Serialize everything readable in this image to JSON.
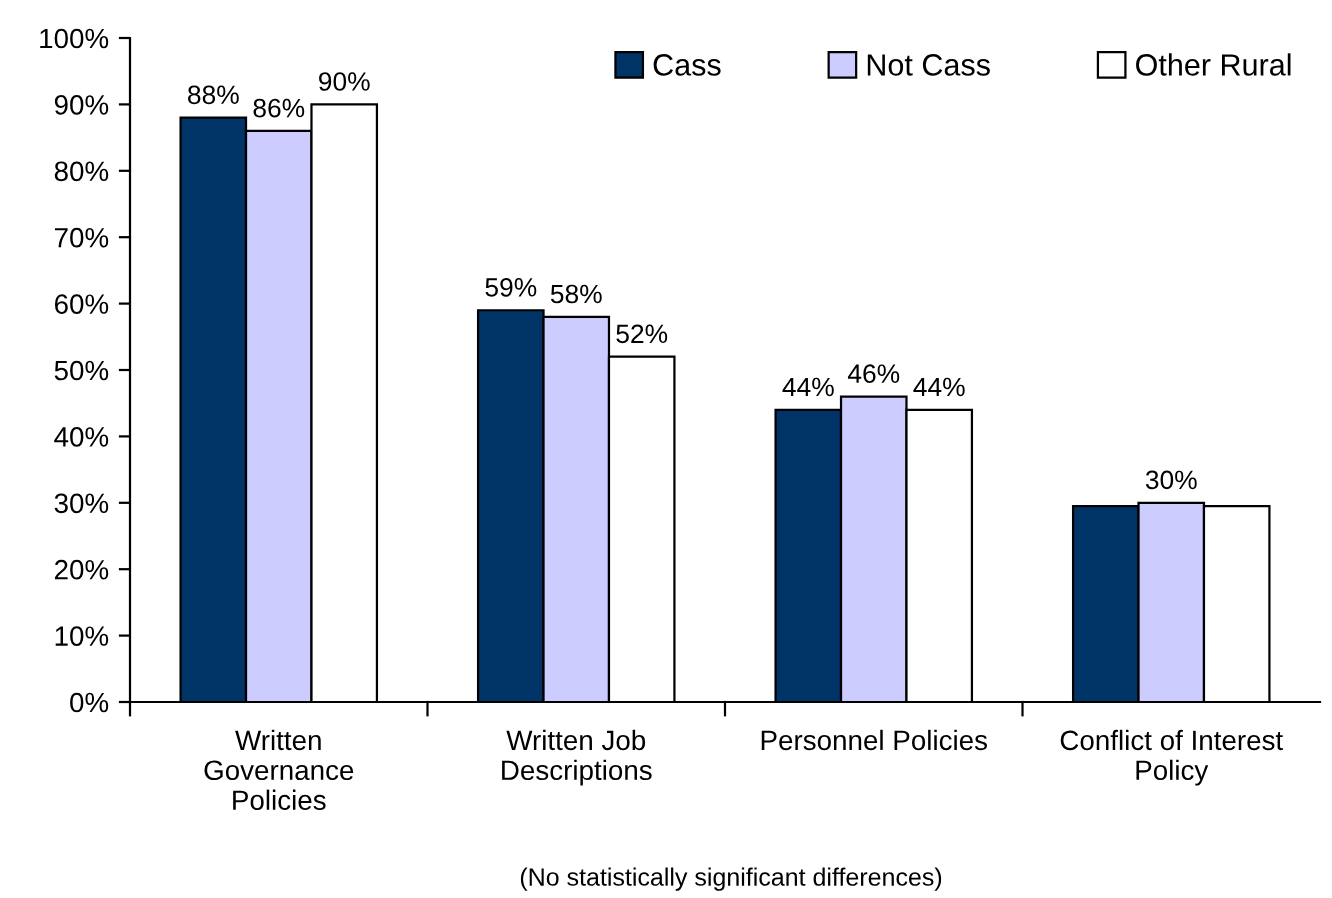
{
  "chart_data": {
    "type": "bar",
    "categories": [
      "Written\nGovernance\nPolicies",
      "Written Job\nDescriptions",
      "Personnel Policies",
      "Conflict of Interest\nPolicy"
    ],
    "series": [
      {
        "name": "Cass",
        "color": "#003366",
        "values": [
          88,
          59,
          44,
          29.5
        ],
        "value_labels": [
          "88%",
          "59%",
          "44%",
          null
        ]
      },
      {
        "name": "Not Cass",
        "color": "#ccccff",
        "values": [
          86,
          58,
          46,
          30
        ],
        "value_labels": [
          "86%",
          "58%",
          "46%",
          "30%"
        ]
      },
      {
        "name": "Other Rural",
        "color": "#ffffff",
        "values": [
          90,
          52,
          44,
          29.5
        ],
        "value_labels": [
          "90%",
          "52%",
          "44%",
          null
        ]
      }
    ],
    "ylim": [
      0,
      100
    ],
    "yticks": [
      {
        "value": 0,
        "label": "0%"
      },
      {
        "value": 10,
        "label": "10%"
      },
      {
        "value": 20,
        "label": "20%"
      },
      {
        "value": 30,
        "label": "30%"
      },
      {
        "value": 40,
        "label": "40%"
      },
      {
        "value": 50,
        "label": "50%"
      },
      {
        "value": 60,
        "label": "60%"
      },
      {
        "value": 70,
        "label": "70%"
      },
      {
        "value": 80,
        "label": "80%"
      },
      {
        "value": 90,
        "label": "90%"
      },
      {
        "value": 100,
        "label": "100%"
      }
    ],
    "legend": "top right",
    "grid": false,
    "annotations": [
      "(No statistically significant differences)"
    ]
  }
}
